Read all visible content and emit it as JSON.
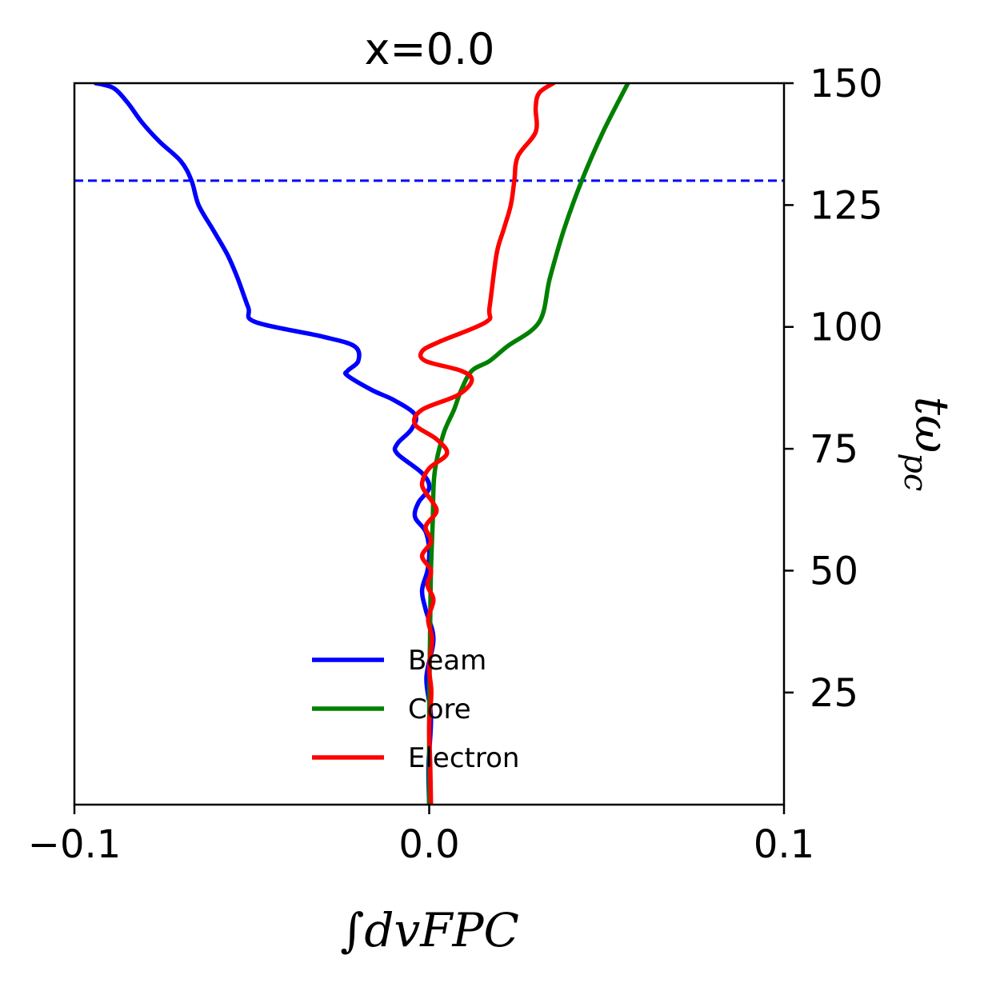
{
  "chart_data": {
    "type": "line",
    "title": "x=0.0",
    "xlabel": "∫dvFPC",
    "ylabel": "tωpc",
    "xlim": [
      -0.1,
      0.1
    ],
    "ylim": [
      2,
      150
    ],
    "xticks": [
      {
        "value": -0.1,
        "label": "−0.1"
      },
      {
        "value": 0.0,
        "label": "0.0"
      },
      {
        "value": 0.1,
        "label": "0.1"
      }
    ],
    "yticks": [
      {
        "value": 25,
        "label": "25"
      },
      {
        "value": 50,
        "label": "50"
      },
      {
        "value": 75,
        "label": "75"
      },
      {
        "value": 100,
        "label": "100"
      },
      {
        "value": 125,
        "label": "125"
      },
      {
        "value": 150,
        "label": "150"
      }
    ],
    "hline": {
      "y": 130,
      "color": "#0000ff",
      "style": "dashed"
    },
    "legend": {
      "location": "bottom-center"
    },
    "series": [
      {
        "name": "Beam",
        "color": "#0000ff",
        "points": [
          [
            0.0,
            2
          ],
          [
            -0.0002,
            10
          ],
          [
            0.0005,
            20
          ],
          [
            -0.0008,
            28
          ],
          [
            0.0012,
            36
          ],
          [
            -0.001,
            42
          ],
          [
            -0.002,
            46
          ],
          [
            -0.0005,
            50
          ],
          [
            0.0,
            54
          ],
          [
            -0.001,
            58
          ],
          [
            -0.004,
            61
          ],
          [
            -0.003,
            64
          ],
          [
            0.0,
            67
          ],
          [
            -0.002,
            70
          ],
          [
            -0.009,
            74
          ],
          [
            -0.009,
            76
          ],
          [
            -0.005,
            79
          ],
          [
            -0.004,
            82
          ],
          [
            -0.01,
            85
          ],
          [
            -0.016,
            87
          ],
          [
            -0.023,
            90
          ],
          [
            -0.023,
            91
          ],
          [
            -0.02,
            93
          ],
          [
            -0.021,
            96
          ],
          [
            -0.03,
            98
          ],
          [
            -0.049,
            101
          ],
          [
            -0.051,
            104
          ],
          [
            -0.054,
            110
          ],
          [
            -0.057,
            115
          ],
          [
            -0.061,
            120
          ],
          [
            -0.065,
            125
          ],
          [
            -0.067,
            130
          ],
          [
            -0.07,
            134
          ],
          [
            -0.076,
            138
          ],
          [
            -0.081,
            142
          ],
          [
            -0.085,
            146
          ],
          [
            -0.089,
            149
          ],
          [
            -0.094,
            150
          ]
        ]
      },
      {
        "name": "Core",
        "color": "#008000",
        "points": [
          [
            0.0,
            2
          ],
          [
            0.0,
            20
          ],
          [
            0.0003,
            40
          ],
          [
            0.0005,
            50
          ],
          [
            0.001,
            60
          ],
          [
            0.0015,
            70
          ],
          [
            0.004,
            78
          ],
          [
            0.007,
            83
          ],
          [
            0.009,
            87
          ],
          [
            0.012,
            91
          ],
          [
            0.017,
            93
          ],
          [
            0.022,
            96
          ],
          [
            0.031,
            101
          ],
          [
            0.034,
            110
          ],
          [
            0.038,
            120
          ],
          [
            0.043,
            130
          ],
          [
            0.049,
            140
          ],
          [
            0.056,
            150
          ]
        ]
      },
      {
        "name": "Electron",
        "color": "#ff0000",
        "points": [
          [
            0.0005,
            2
          ],
          [
            0.0003,
            10
          ],
          [
            0.0,
            18
          ],
          [
            0.0006,
            25
          ],
          [
            0.0,
            30
          ],
          [
            0.0008,
            36
          ],
          [
            -0.0003,
            40
          ],
          [
            0.0012,
            44
          ],
          [
            -0.0005,
            47
          ],
          [
            0.0005,
            50
          ],
          [
            -0.002,
            53
          ],
          [
            0.0005,
            56
          ],
          [
            -0.001,
            59
          ],
          [
            0.002,
            62
          ],
          [
            0.001,
            64
          ],
          [
            -0.001,
            66
          ],
          [
            -0.002,
            68
          ],
          [
            0.0,
            71
          ],
          [
            0.005,
            74
          ],
          [
            0.002,
            77
          ],
          [
            -0.004,
            80
          ],
          [
            -0.002,
            83
          ],
          [
            0.008,
            86
          ],
          [
            0.012,
            89
          ],
          [
            0.009,
            91
          ],
          [
            -0.001,
            93
          ],
          [
            -0.002,
            95
          ],
          [
            0.003,
            97
          ],
          [
            0.016,
            101
          ],
          [
            0.017,
            104
          ],
          [
            0.019,
            115
          ],
          [
            0.021,
            120
          ],
          [
            0.023,
            125
          ],
          [
            0.024,
            130
          ],
          [
            0.025,
            135
          ],
          [
            0.03,
            140
          ],
          [
            0.03,
            145
          ],
          [
            0.031,
            148
          ],
          [
            0.035,
            150
          ]
        ]
      }
    ]
  }
}
